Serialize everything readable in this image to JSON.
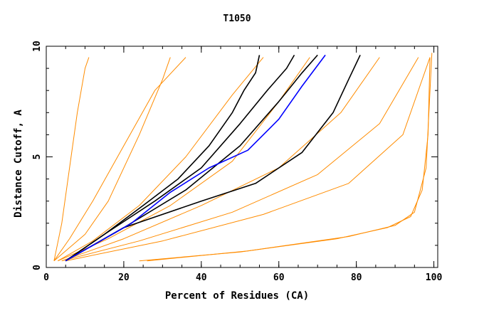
{
  "chart_data": {
    "type": "line",
    "title": "T1050",
    "xlabel": "Percent of Residues (CA)",
    "ylabel": "Distance Cutoff, A",
    "xlim": [
      0,
      101
    ],
    "ylim": [
      0,
      10
    ],
    "xticks": [
      0,
      20,
      40,
      60,
      80,
      100
    ],
    "yticks": [
      0,
      5,
      10
    ],
    "x_minor_step": 5,
    "y_minor_step": 1,
    "grid": false,
    "colors": {
      "background_models": "#ff8c00",
      "highlight_black": "#000000",
      "highlight_blue": "#0000ff",
      "axes": "#000000"
    },
    "series": [
      {
        "group": "background",
        "x": [
          2,
          10,
          16,
          24,
          30,
          32
        ],
        "y": [
          0.3,
          1.5,
          3,
          6,
          8.5,
          9.5
        ]
      },
      {
        "group": "background",
        "x": [
          2,
          4,
          6,
          8,
          10,
          11
        ],
        "y": [
          0.3,
          2,
          4.5,
          7,
          9,
          9.5
        ]
      },
      {
        "group": "background",
        "x": [
          2,
          6,
          12,
          20,
          28,
          36
        ],
        "y": [
          0.3,
          1.3,
          3,
          5.5,
          8,
          9.5
        ]
      },
      {
        "group": "background",
        "x": [
          3,
          12,
          24,
          36,
          48,
          56
        ],
        "y": [
          0.3,
          1.2,
          2.8,
          5,
          7.8,
          9.5
        ]
      },
      {
        "group": "background",
        "x": [
          3,
          16,
          32,
          48,
          60,
          68
        ],
        "y": [
          0.3,
          1.3,
          2.8,
          4.8,
          7.5,
          9.5
        ]
      },
      {
        "group": "background",
        "x": [
          4,
          20,
          40,
          60,
          76,
          86
        ],
        "y": [
          0.3,
          1.3,
          2.8,
          4.5,
          7,
          9.5
        ]
      },
      {
        "group": "background",
        "x": [
          4,
          24,
          48,
          70,
          86,
          96
        ],
        "y": [
          0.3,
          1.2,
          2.5,
          4.2,
          6.5,
          9.5
        ]
      },
      {
        "group": "background",
        "x": [
          5,
          30,
          56,
          78,
          92,
          99
        ],
        "y": [
          0.3,
          1.2,
          2.4,
          3.8,
          6,
          9.5
        ]
      },
      {
        "group": "background",
        "x": [
          24,
          50,
          75,
          88,
          94,
          97,
          98.5,
          99
        ],
        "y": [
          0.3,
          0.7,
          1.3,
          1.8,
          2.3,
          3.5,
          6,
          9.5
        ]
      },
      {
        "group": "background",
        "x": [
          26,
          52,
          78,
          90,
          95,
          98,
          99.5
        ],
        "y": [
          0.3,
          0.75,
          1.4,
          1.9,
          2.5,
          4.5,
          9.7
        ]
      },
      {
        "group": "highlight_black",
        "x": [
          5,
          15,
          25,
          34,
          42,
          48,
          51,
          54,
          55
        ],
        "y": [
          0.3,
          1.5,
          2.8,
          4,
          5.5,
          7,
          8,
          8.8,
          9.6
        ]
      },
      {
        "group": "highlight_black",
        "x": [
          5,
          15,
          28,
          40,
          50,
          57,
          62,
          64
        ],
        "y": [
          0.3,
          1.5,
          3,
          4.5,
          6.5,
          8,
          9,
          9.6
        ]
      },
      {
        "group": "highlight_black",
        "x": [
          5,
          20,
          36,
          50,
          60,
          66,
          70
        ],
        "y": [
          0.3,
          1.8,
          3.5,
          5.5,
          7.5,
          8.8,
          9.6
        ]
      },
      {
        "group": "highlight_black",
        "x": [
          5,
          20,
          40,
          54,
          66,
          74,
          78,
          81
        ],
        "y": [
          0.3,
          1.8,
          3,
          3.8,
          5.2,
          7,
          8.5,
          9.6
        ]
      },
      {
        "group": "highlight_blue",
        "x": [
          5,
          12,
          22,
          32,
          42,
          52,
          60,
          66,
          72
        ],
        "y": [
          0.3,
          1,
          2,
          3.4,
          4.5,
          5.3,
          6.7,
          8.2,
          9.6
        ]
      }
    ]
  }
}
